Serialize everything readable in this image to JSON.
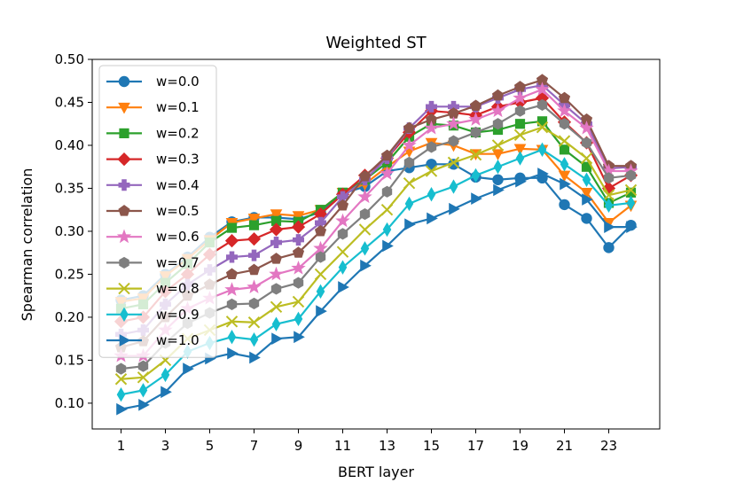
{
  "chart_data": {
    "type": "line",
    "title": "Weighted ST",
    "xlabel": "BERT layer",
    "ylabel": "Spearman correlation",
    "x": [
      1,
      2,
      3,
      4,
      5,
      6,
      7,
      8,
      9,
      10,
      11,
      12,
      13,
      14,
      15,
      16,
      17,
      18,
      19,
      20,
      21,
      22,
      23,
      24
    ],
    "xticks": [
      1,
      3,
      5,
      7,
      9,
      11,
      13,
      15,
      17,
      19,
      21,
      23
    ],
    "xlim": [
      -0.3,
      25.3
    ],
    "ylim": [
      0.07,
      0.5
    ],
    "yticks": [
      0.1,
      0.15,
      0.2,
      0.25,
      0.3,
      0.35,
      0.4,
      0.45,
      0.5
    ],
    "ytick_labels": [
      "0.10",
      "0.15",
      "0.20",
      "0.25",
      "0.30",
      "0.35",
      "0.40",
      "0.45",
      "0.50"
    ],
    "legend_position": "upper-left",
    "series": [
      {
        "name": "w=0.0",
        "color": "#1f77b4",
        "marker": "circle",
        "values": [
          0.22,
          0.225,
          0.25,
          0.27,
          0.293,
          0.311,
          0.316,
          0.316,
          0.314,
          0.322,
          0.344,
          0.352,
          0.37,
          0.374,
          0.378,
          0.378,
          0.363,
          0.36,
          0.362,
          0.362,
          0.331,
          0.315,
          0.281,
          0.307
        ]
      },
      {
        "name": "w=0.1",
        "color": "#ff7f0e",
        "marker": "triangle-down",
        "values": [
          0.218,
          0.222,
          0.248,
          0.268,
          0.29,
          0.31,
          0.315,
          0.32,
          0.318,
          0.325,
          0.345,
          0.355,
          0.375,
          0.393,
          0.403,
          0.4,
          0.39,
          0.39,
          0.396,
          0.395,
          0.365,
          0.345,
          0.31,
          0.33
        ]
      },
      {
        "name": "w=0.2",
        "color": "#2ca02c",
        "marker": "square",
        "values": [
          0.21,
          0.215,
          0.24,
          0.262,
          0.287,
          0.304,
          0.307,
          0.312,
          0.311,
          0.325,
          0.345,
          0.36,
          0.38,
          0.41,
          0.425,
          0.423,
          0.415,
          0.418,
          0.425,
          0.428,
          0.395,
          0.375,
          0.333,
          0.345
        ]
      },
      {
        "name": "w=0.3",
        "color": "#d62728",
        "marker": "diamond",
        "values": [
          0.195,
          0.2,
          0.23,
          0.25,
          0.273,
          0.289,
          0.291,
          0.302,
          0.305,
          0.32,
          0.343,
          0.365,
          0.385,
          0.415,
          0.44,
          0.438,
          0.435,
          0.445,
          0.45,
          0.455,
          0.427,
          0.403,
          0.35,
          0.365
        ]
      },
      {
        "name": "w=0.4",
        "color": "#9467bd",
        "marker": "plus",
        "values": [
          0.18,
          0.185,
          0.215,
          0.238,
          0.255,
          0.27,
          0.272,
          0.287,
          0.29,
          0.31,
          0.34,
          0.36,
          0.385,
          0.42,
          0.445,
          0.445,
          0.445,
          0.455,
          0.465,
          0.47,
          0.447,
          0.425,
          0.373,
          0.375
        ]
      },
      {
        "name": "w=0.5",
        "color": "#8c564b",
        "marker": "pentagon",
        "values": [
          0.165,
          0.172,
          0.2,
          0.225,
          0.238,
          0.25,
          0.255,
          0.268,
          0.275,
          0.3,
          0.33,
          0.364,
          0.388,
          0.42,
          0.43,
          0.437,
          0.446,
          0.458,
          0.468,
          0.476,
          0.455,
          0.43,
          0.376,
          0.376
        ]
      },
      {
        "name": "w=0.6",
        "color": "#e377c2",
        "marker": "star",
        "values": [
          0.155,
          0.155,
          0.185,
          0.21,
          0.222,
          0.232,
          0.235,
          0.25,
          0.257,
          0.28,
          0.312,
          0.34,
          0.367,
          0.4,
          0.42,
          0.425,
          0.43,
          0.44,
          0.455,
          0.465,
          0.44,
          0.42,
          0.37,
          0.37
        ]
      },
      {
        "name": "w=0.7",
        "color": "#7f7f7f",
        "marker": "hexagon",
        "values": [
          0.14,
          0.143,
          0.17,
          0.193,
          0.205,
          0.215,
          0.216,
          0.233,
          0.24,
          0.27,
          0.297,
          0.32,
          0.346,
          0.38,
          0.398,
          0.405,
          0.415,
          0.425,
          0.44,
          0.447,
          0.425,
          0.403,
          0.362,
          0.365
        ]
      },
      {
        "name": "w=0.8",
        "color": "#bcbd22",
        "marker": "x",
        "values": [
          0.128,
          0.13,
          0.15,
          0.175,
          0.185,
          0.195,
          0.194,
          0.212,
          0.218,
          0.25,
          0.276,
          0.302,
          0.325,
          0.356,
          0.37,
          0.38,
          0.389,
          0.4,
          0.412,
          0.421,
          0.405,
          0.385,
          0.342,
          0.348
        ]
      },
      {
        "name": "w=0.9",
        "color": "#17becf",
        "marker": "thin-diamond",
        "values": [
          0.11,
          0.115,
          0.133,
          0.16,
          0.17,
          0.177,
          0.174,
          0.192,
          0.198,
          0.23,
          0.258,
          0.28,
          0.302,
          0.332,
          0.343,
          0.352,
          0.365,
          0.375,
          0.385,
          0.395,
          0.378,
          0.36,
          0.33,
          0.333
        ]
      },
      {
        "name": "w=1.0",
        "color": "#1f77b4",
        "marker": "triangle-right",
        "values": [
          0.093,
          0.098,
          0.113,
          0.14,
          0.152,
          0.158,
          0.153,
          0.175,
          0.177,
          0.207,
          0.235,
          0.26,
          0.283,
          0.308,
          0.315,
          0.326,
          0.338,
          0.348,
          0.358,
          0.367,
          0.355,
          0.337,
          0.305,
          0.305
        ]
      }
    ]
  }
}
